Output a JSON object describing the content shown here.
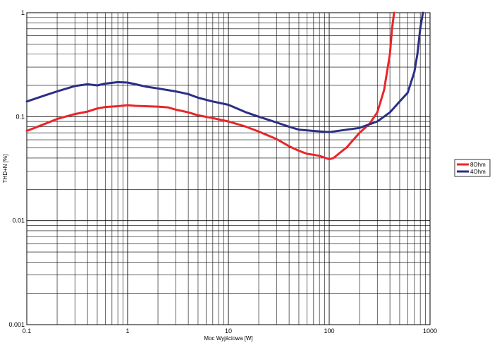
{
  "chart_data": {
    "type": "line",
    "title": "",
    "xlabel": "Moc Wyjściowa [W]",
    "ylabel": "THD+N [%]",
    "x_scale": "log",
    "y_scale": "log",
    "xlim": [
      0.1,
      1000
    ],
    "ylim": [
      0.001,
      1
    ],
    "grid": true,
    "legend_position": "right",
    "x_ticks": [
      "0.1",
      "1",
      "10",
      "100",
      "1000"
    ],
    "y_ticks": [
      "0.001",
      "0.01",
      "0.1",
      "1"
    ],
    "series": [
      {
        "name": "8Ohm",
        "color": "#e8262a",
        "x": [
          0.1,
          0.15,
          0.2,
          0.3,
          0.4,
          0.5,
          0.6,
          0.8,
          1.0,
          1.2,
          1.5,
          2.0,
          2.5,
          3.0,
          4.0,
          5.0,
          7.0,
          10,
          15,
          20,
          30,
          40,
          50,
          60,
          70,
          80,
          100,
          110,
          150,
          200,
          250,
          300,
          350,
          400,
          420,
          440
        ],
        "y": [
          0.073,
          0.085,
          0.095,
          0.106,
          0.112,
          0.12,
          0.124,
          0.126,
          0.129,
          0.127,
          0.126,
          0.125,
          0.123,
          0.117,
          0.11,
          0.103,
          0.097,
          0.09,
          0.08,
          0.072,
          0.061,
          0.052,
          0.047,
          0.044,
          0.043,
          0.042,
          0.039,
          0.04,
          0.051,
          0.07,
          0.085,
          0.11,
          0.18,
          0.4,
          0.7,
          1.0
        ]
      },
      {
        "name": "4Ohm",
        "color": "#2b2f86",
        "x": [
          0.1,
          0.15,
          0.2,
          0.3,
          0.4,
          0.5,
          0.6,
          0.8,
          1.0,
          1.2,
          1.5,
          2.0,
          3.0,
          4.0,
          5.0,
          7.0,
          10,
          15,
          20,
          30,
          40,
          50,
          70,
          100,
          150,
          200,
          300,
          400,
          500,
          600,
          700,
          750,
          800,
          850
        ],
        "y": [
          0.14,
          0.16,
          0.175,
          0.197,
          0.205,
          0.2,
          0.208,
          0.215,
          0.213,
          0.205,
          0.195,
          0.187,
          0.175,
          0.165,
          0.152,
          0.14,
          0.13,
          0.11,
          0.1,
          0.088,
          0.08,
          0.075,
          0.073,
          0.071,
          0.075,
          0.078,
          0.09,
          0.11,
          0.14,
          0.17,
          0.27,
          0.4,
          0.7,
          1.0
        ]
      }
    ]
  }
}
